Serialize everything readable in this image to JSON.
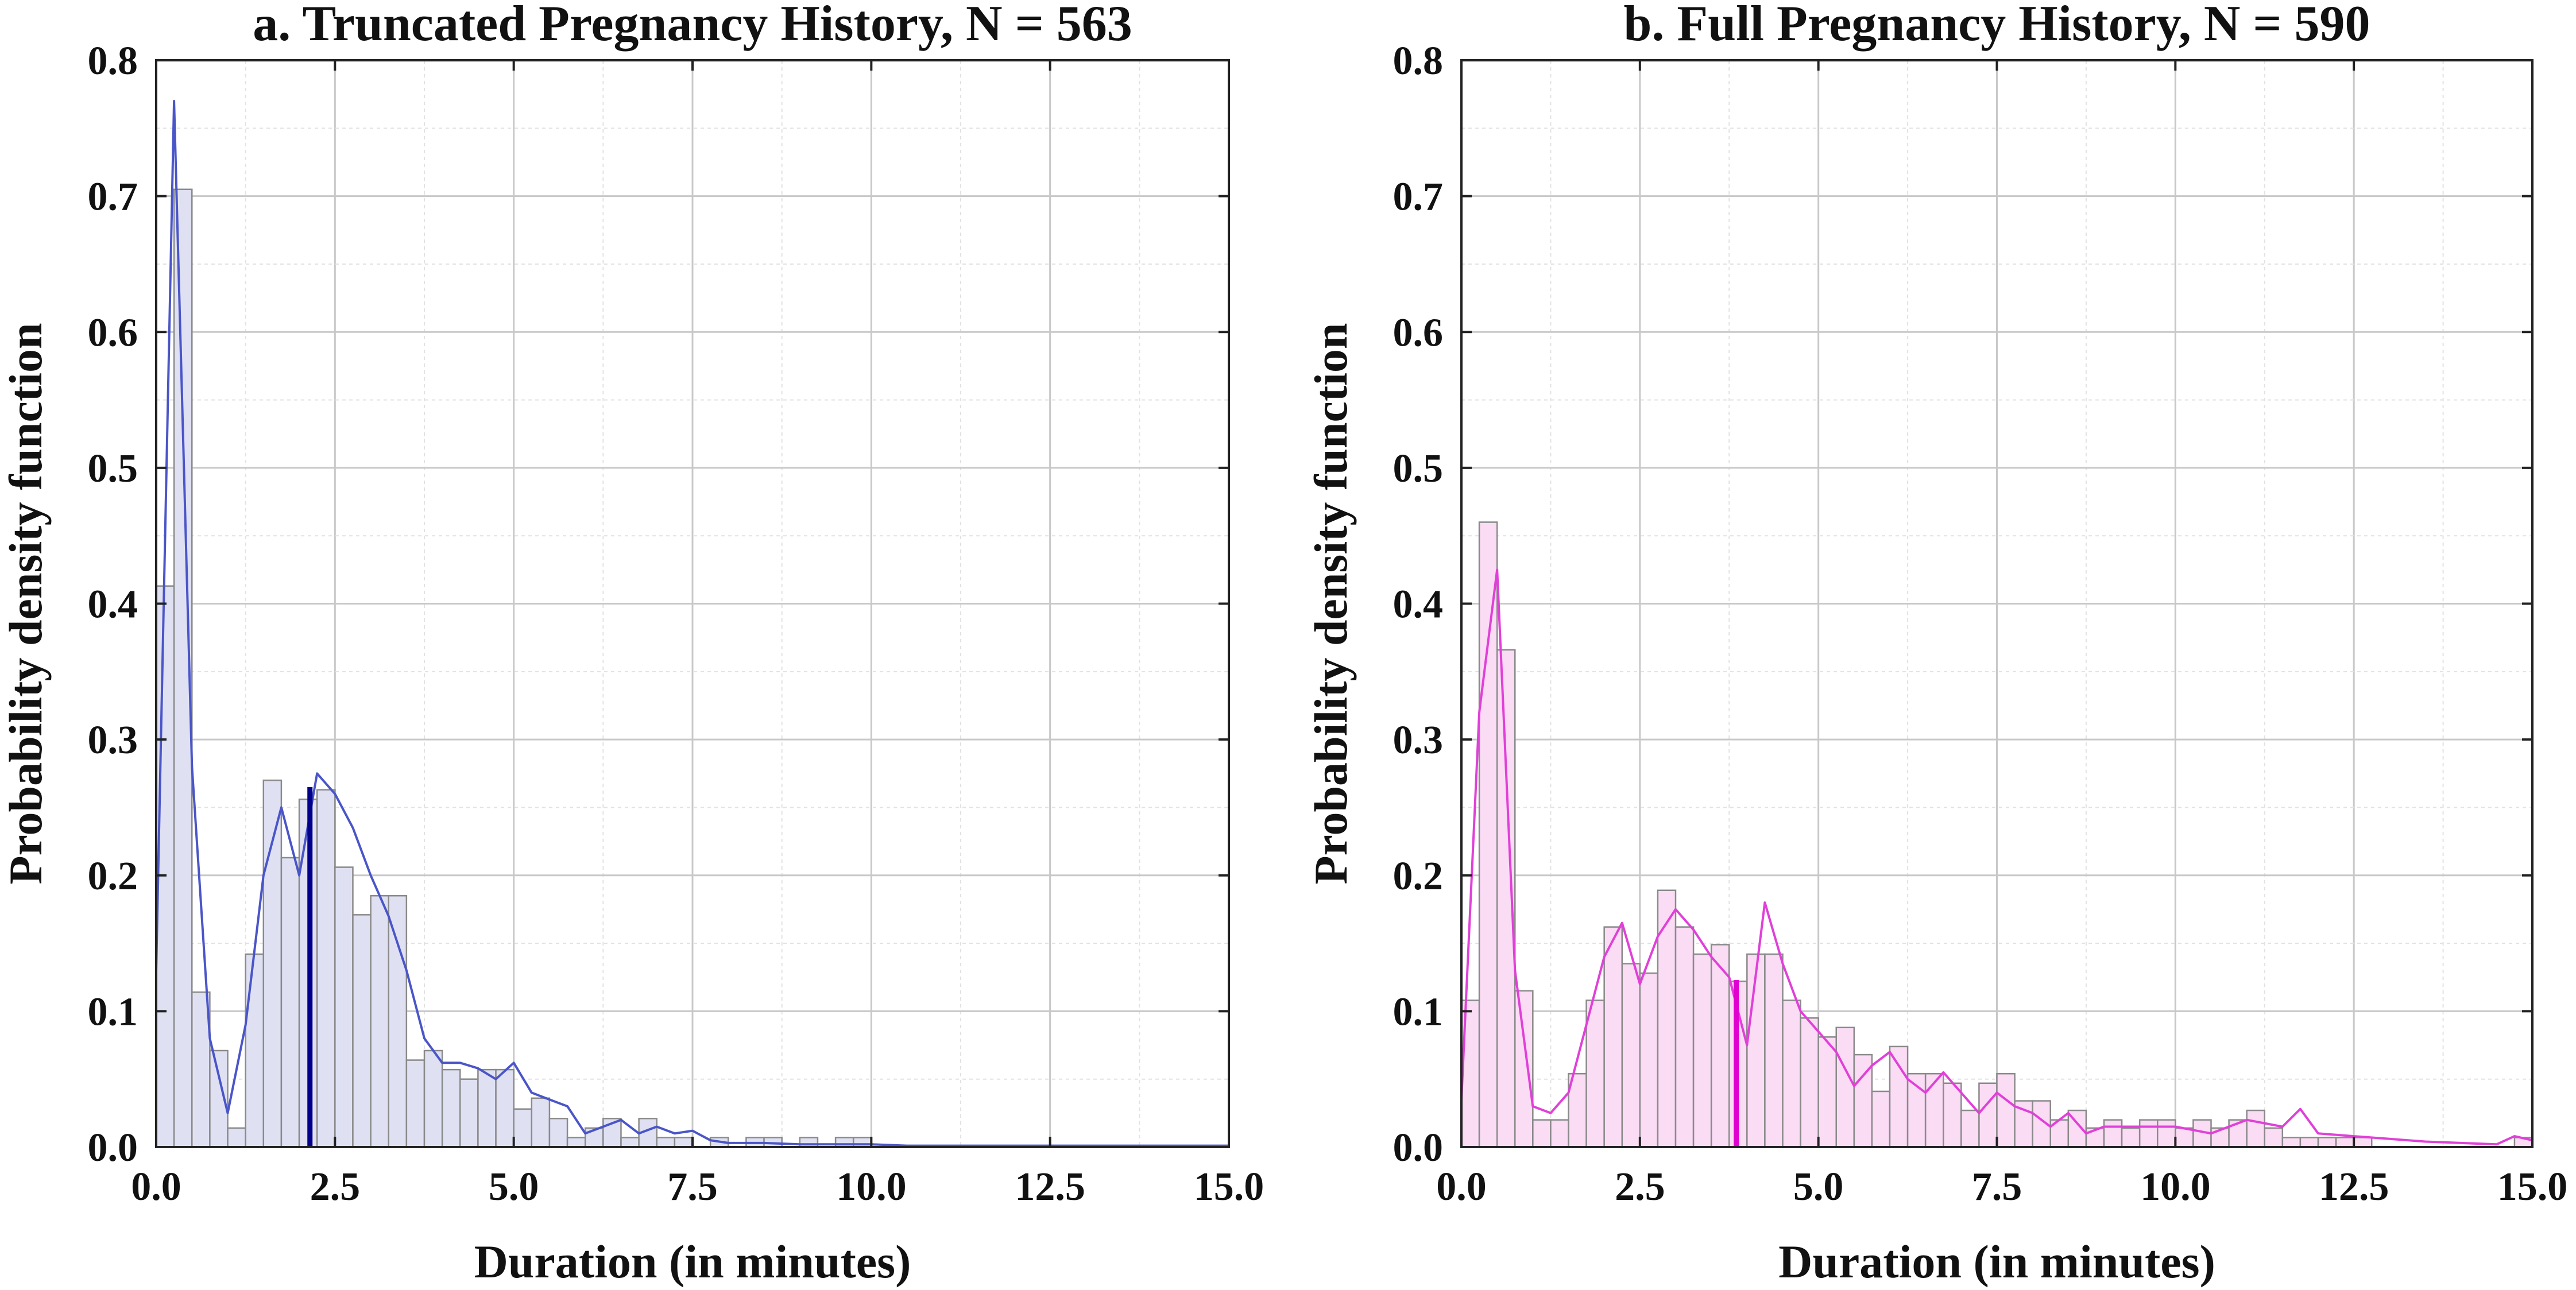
{
  "chart_data": [
    {
      "type": "bar",
      "title": "a. Truncated Pregnancy History, N = 563",
      "xlabel": "Duration (in minutes)",
      "ylabel": "Probability density function",
      "xlim": [
        0,
        15
      ],
      "ylim": [
        0,
        0.8
      ],
      "xticks": [
        "0.0",
        "2.5",
        "5.0",
        "7.5",
        "10.0",
        "12.5",
        "15.0"
      ],
      "yticks": [
        "0.0",
        "0.1",
        "0.2",
        "0.3",
        "0.4",
        "0.5",
        "0.6",
        "0.7",
        "0.8"
      ],
      "grid": true,
      "bin_width": 0.25,
      "bar_color": "#dfe1f3",
      "line_color": "#4a55c8",
      "marker_color": "#00008b",
      "marker_x": 2.15,
      "marker_y": 0.265,
      "hist_values": [
        0.413,
        0.705,
        0.114,
        0.071,
        0.014,
        0.142,
        0.27,
        0.213,
        0.256,
        0.263,
        0.206,
        0.171,
        0.185,
        0.185,
        0.064,
        0.071,
        0.057,
        0.05,
        0.057,
        0.057,
        0.028,
        0.036,
        0.021,
        0.007,
        0.014,
        0.021,
        0.007,
        0.021,
        0.007,
        0.007,
        0.0,
        0.007,
        0.0,
        0.007,
        0.007,
        0.0,
        0.007,
        0.0,
        0.007,
        0.007,
        0.0
      ],
      "density_x": [
        0.0,
        0.25,
        0.5,
        0.75,
        1.0,
        1.25,
        1.5,
        1.75,
        2.0,
        2.25,
        2.5,
        2.75,
        3.0,
        3.25,
        3.5,
        3.75,
        4.0,
        4.25,
        4.5,
        4.75,
        5.0,
        5.25,
        5.5,
        5.75,
        6.0,
        6.25,
        6.5,
        6.75,
        7.0,
        7.25,
        7.5,
        7.75,
        8.0,
        8.5,
        9.0,
        9.5,
        10.0,
        10.5,
        11.0,
        12.0,
        13.0,
        14.0,
        15.0
      ],
      "density_y": [
        0.13,
        0.77,
        0.28,
        0.08,
        0.025,
        0.09,
        0.2,
        0.25,
        0.2,
        0.275,
        0.26,
        0.235,
        0.2,
        0.17,
        0.13,
        0.08,
        0.062,
        0.062,
        0.058,
        0.05,
        0.062,
        0.04,
        0.035,
        0.03,
        0.01,
        0.015,
        0.02,
        0.01,
        0.015,
        0.01,
        0.012,
        0.005,
        0.003,
        0.003,
        0.002,
        0.002,
        0.002,
        0.001,
        0.001,
        0.001,
        0.001,
        0.001,
        0.001
      ]
    },
    {
      "type": "bar",
      "title": "b. Full Pregnancy History, N = 590",
      "xlabel": "Duration (in minutes)",
      "ylabel": "Probability density function",
      "xlim": [
        0,
        15
      ],
      "ylim": [
        0,
        0.8
      ],
      "xticks": [
        "0.0",
        "2.5",
        "5.0",
        "7.5",
        "10.0",
        "12.5",
        "15.0"
      ],
      "yticks": [
        "0.0",
        "0.1",
        "0.2",
        "0.3",
        "0.4",
        "0.5",
        "0.6",
        "0.7",
        "0.8"
      ],
      "grid": true,
      "bin_width": 0.25,
      "bar_color": "#fadcf4",
      "line_color": "#e040d8",
      "marker_color": "#e000d0",
      "marker_x": 3.85,
      "marker_y": 0.123,
      "hist_values": [
        0.108,
        0.46,
        0.366,
        0.115,
        0.02,
        0.02,
        0.054,
        0.108,
        0.162,
        0.135,
        0.128,
        0.189,
        0.162,
        0.142,
        0.149,
        0.122,
        0.142,
        0.142,
        0.108,
        0.095,
        0.081,
        0.088,
        0.068,
        0.041,
        0.074,
        0.054,
        0.054,
        0.047,
        0.027,
        0.047,
        0.054,
        0.034,
        0.034,
        0.02,
        0.027,
        0.014,
        0.02,
        0.014,
        0.02,
        0.02,
        0.014,
        0.02,
        0.014,
        0.02,
        0.027,
        0.014,
        0.007,
        0.007,
        0.007,
        0.007,
        0.007,
        0.0,
        0.0,
        0.0,
        0.0,
        0.0,
        0.0,
        0.0,
        0.0,
        0.007
      ],
      "density_x": [
        0.0,
        0.25,
        0.5,
        0.75,
        1.0,
        1.25,
        1.5,
        1.75,
        2.0,
        2.25,
        2.5,
        2.75,
        3.0,
        3.25,
        3.5,
        3.75,
        4.0,
        4.25,
        4.5,
        4.75,
        5.0,
        5.25,
        5.5,
        5.75,
        6.0,
        6.25,
        6.5,
        6.75,
        7.0,
        7.25,
        7.5,
        7.75,
        8.0,
        8.25,
        8.5,
        8.75,
        9.0,
        9.5,
        10.0,
        10.5,
        11.0,
        11.5,
        11.75,
        12.0,
        12.5,
        13.0,
        13.5,
        14.0,
        14.5,
        14.75,
        15.0
      ],
      "density_y": [
        0.035,
        0.32,
        0.425,
        0.13,
        0.03,
        0.025,
        0.04,
        0.09,
        0.14,
        0.165,
        0.12,
        0.155,
        0.175,
        0.16,
        0.14,
        0.125,
        0.075,
        0.18,
        0.135,
        0.1,
        0.085,
        0.07,
        0.045,
        0.06,
        0.07,
        0.05,
        0.04,
        0.055,
        0.04,
        0.025,
        0.04,
        0.03,
        0.025,
        0.015,
        0.025,
        0.01,
        0.015,
        0.015,
        0.015,
        0.01,
        0.02,
        0.015,
        0.028,
        0.01,
        0.008,
        0.006,
        0.004,
        0.003,
        0.002,
        0.008,
        0.005
      ]
    }
  ]
}
